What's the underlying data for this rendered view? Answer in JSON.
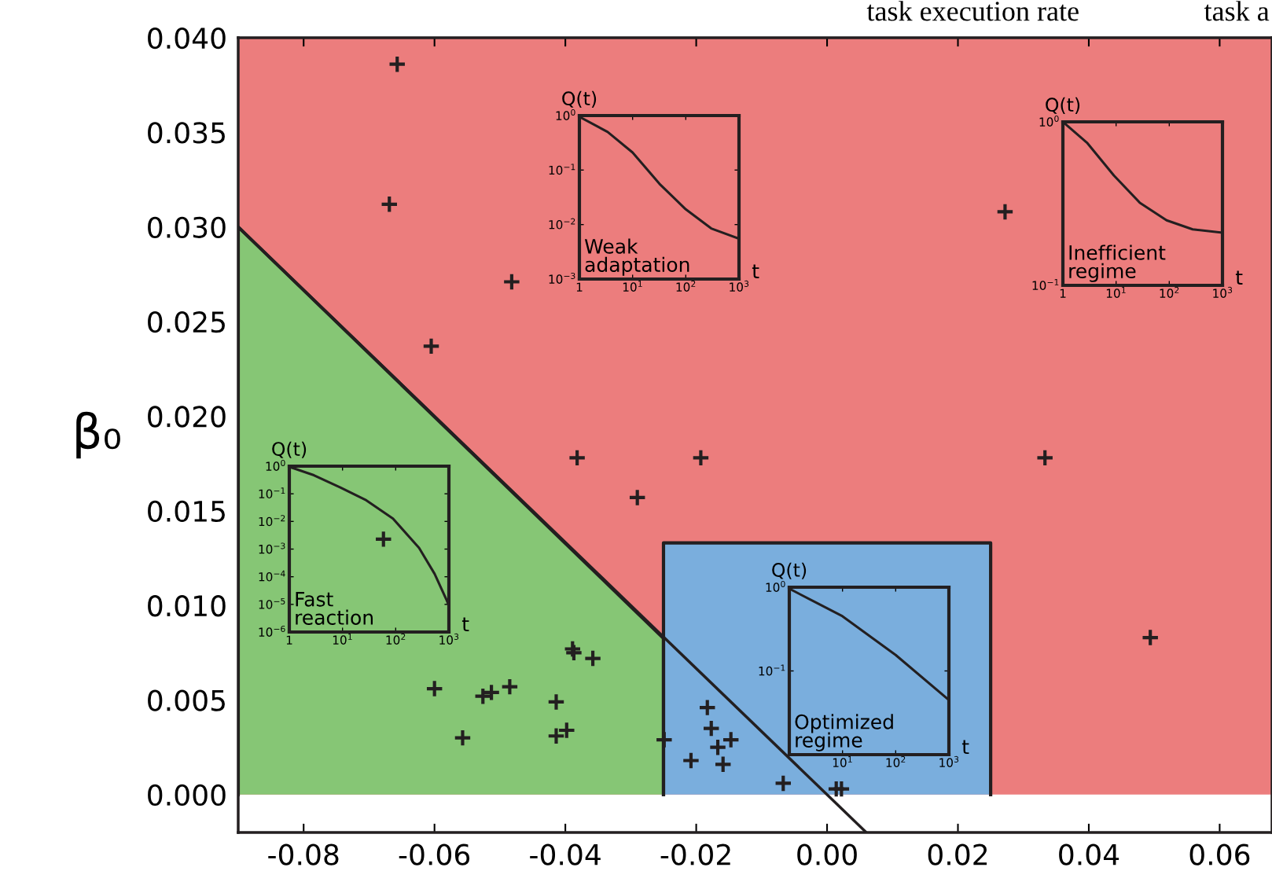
{
  "chart_data": [
    {
      "type": "scatter",
      "ylabel": "β₀",
      "annotations": [
        "task execution rate",
        "task a"
      ],
      "xlim": [
        -0.09,
        0.068
      ],
      "ylim": [
        -0.002,
        0.04
      ],
      "xticks": [
        {
          "value": -0.08,
          "label": "-0.08"
        },
        {
          "value": -0.06,
          "label": "-0.06"
        },
        {
          "value": -0.04,
          "label": "-0.04"
        },
        {
          "value": -0.02,
          "label": "-0.02"
        },
        {
          "value": 0.0,
          "label": "0.00"
        },
        {
          "value": 0.02,
          "label": "0.02"
        },
        {
          "value": 0.04,
          "label": "0.04"
        },
        {
          "value": 0.06,
          "label": "0.06"
        }
      ],
      "yticks": [
        {
          "value": 0.0,
          "label": "0.000"
        },
        {
          "value": 0.005,
          "label": "0.005"
        },
        {
          "value": 0.01,
          "label": "0.010"
        },
        {
          "value": 0.015,
          "label": "0.015"
        },
        {
          "value": 0.02,
          "label": "0.020"
        },
        {
          "value": 0.025,
          "label": "0.025"
        },
        {
          "value": 0.03,
          "label": "0.030"
        },
        {
          "value": 0.035,
          "label": "0.035"
        },
        {
          "value": 0.04,
          "label": "0.040"
        }
      ],
      "bands": [
        {
          "axis": "y",
          "from": 0.0,
          "to": 0.04,
          "color": "#ec7d7d"
        }
      ],
      "series": [
        {
          "type": "area",
          "color": "#86c675",
          "x": [
            -0.09,
            -0.025
          ],
          "values": [
            0.03,
            0.00826
          ]
        },
        {
          "type": "area",
          "color": "#7aaedd",
          "x": [
            -0.025,
            0.025
          ],
          "values": [
            0.0133,
            0.0133
          ]
        },
        {
          "type": "line",
          "color": "#231f20",
          "x": [
            -0.09,
            0.006
          ],
          "values": [
            0.03,
            -0.002
          ]
        },
        {
          "type": "scatter",
          "color": "#231f20",
          "marker": "cross",
          "x": [
            -0.0657,
            -0.0669,
            -0.0482,
            -0.0605,
            -0.0382,
            -0.0193,
            -0.029,
            0.0272,
            0.0333,
            0.0494,
            -0.0678,
            -0.0389,
            -0.0387,
            -0.0358,
            -0.06,
            -0.0526,
            -0.0513,
            -0.0485,
            -0.0414,
            -0.0557,
            -0.0414,
            -0.0398,
            -0.0249,
            -0.0183,
            -0.0177,
            -0.0167,
            -0.0147,
            -0.0208,
            -0.0159,
            -0.0067,
            0.0014,
            0.0022
          ],
          "values": [
            0.0386,
            0.0312,
            0.0271,
            0.0237,
            0.0178,
            0.0178,
            0.0157,
            0.0308,
            0.0178,
            0.0083,
            0.0135,
            0.0077,
            0.0075,
            0.0072,
            0.0056,
            0.0052,
            0.0054,
            0.0057,
            0.0049,
            0.003,
            0.0031,
            0.0034,
            0.0029,
            0.0046,
            0.0035,
            0.0025,
            0.0029,
            0.0018,
            0.0016,
            0.0006,
            0.0003,
            0.0003
          ]
        }
      ]
    },
    {
      "type": "line",
      "xlabel": "t",
      "ylabel": "Q(t)",
      "annotations": [
        "Weak adaptation"
      ],
      "log": "xy",
      "xlim": [
        1,
        1000
      ],
      "ylim": [
        0.001,
        1
      ],
      "xticks": [
        {
          "value": 1,
          "label": "1"
        },
        {
          "value": 10,
          "label": "10$^{1}$"
        },
        {
          "value": 100,
          "label": "10$^{2}$"
        },
        {
          "value": 1000,
          "label": "10$^{3}$"
        }
      ],
      "yticks": [
        {
          "value": 0.001,
          "label": "10$^{−3}$"
        },
        {
          "value": 0.01,
          "label": "10$^{−2}$"
        },
        {
          "value": 0.1,
          "label": "10$^{−1}$"
        },
        {
          "value": 1,
          "label": "10$^{0}$"
        }
      ],
      "series": [
        {
          "color": "#231f20",
          "x": [
            1,
            3.4,
            10,
            32,
            100,
            300,
            1000
          ],
          "values": [
            0.95,
            0.5,
            0.21,
            0.056,
            0.019,
            0.0085,
            0.0055
          ]
        }
      ]
    },
    {
      "type": "line",
      "xlabel": "t",
      "ylabel": "Q(t)",
      "annotations": [
        "Inefficient regime"
      ],
      "log": "xy",
      "xlim": [
        1,
        1000
      ],
      "ylim": [
        0.1,
        1
      ],
      "xticks": [
        {
          "value": 1,
          "label": "1"
        },
        {
          "value": 10,
          "label": "10$^{1}$"
        },
        {
          "value": 100,
          "label": "10$^{2}$"
        },
        {
          "value": 1000,
          "label": "10$^{3}$"
        }
      ],
      "yticks": [
        {
          "value": 0.1,
          "label": "10$^{−1}$"
        },
        {
          "value": 1,
          "label": "10$^{0}$"
        }
      ],
      "series": [
        {
          "color": "#231f20",
          "x": [
            1,
            2.9,
            9.1,
            28,
            89,
            275,
            1000
          ],
          "values": [
            1,
            0.74,
            0.47,
            0.32,
            0.25,
            0.22,
            0.21
          ]
        }
      ]
    },
    {
      "type": "line",
      "xlabel": "t",
      "ylabel": "Q(t)",
      "annotations": [
        "Fast reaction"
      ],
      "log": "xy",
      "xlim": [
        1,
        1000
      ],
      "ylim": [
        1e-06,
        1
      ],
      "xticks": [
        {
          "value": 1,
          "label": "1"
        },
        {
          "value": 10,
          "label": "10$^{1}$"
        },
        {
          "value": 100,
          "label": "10$^{2}$"
        },
        {
          "value": 1000,
          "label": "10$^{3}$"
        }
      ],
      "yticks": [
        {
          "value": 1e-06,
          "label": "10$^{−6}$"
        },
        {
          "value": 1e-05,
          "label": "10$^{−5}$"
        },
        {
          "value": 0.0001,
          "label": "10$^{−4}$"
        },
        {
          "value": 0.001,
          "label": "10$^{−3}$"
        },
        {
          "value": 0.01,
          "label": "10$^{−2}$"
        },
        {
          "value": 0.1,
          "label": "10$^{−1}$"
        },
        {
          "value": 1,
          "label": "10$^{0}$"
        }
      ],
      "series": [
        {
          "color": "#231f20",
          "x": [
            1,
            2.9,
            9.1,
            28,
            89,
            275,
            540,
            910,
            1000
          ],
          "values": [
            0.95,
            0.47,
            0.17,
            0.058,
            0.0126,
            0.0011,
            0.000126,
            1.4e-05,
            9e-06
          ]
        }
      ]
    },
    {
      "type": "line",
      "xlabel": "t",
      "ylabel": "Q(t)",
      "annotations": [
        "Optimized regime"
      ],
      "log": "xy",
      "xlim": [
        1,
        1000
      ],
      "ylim": [
        0.01,
        1
      ],
      "xticks": [
        {
          "value": 1,
          "label": null
        },
        {
          "value": 10,
          "label": "10$^{1}$"
        },
        {
          "value": 100,
          "label": "10$^{2}$"
        },
        {
          "value": 1000,
          "label": "10$^{3}$"
        }
      ],
      "yticks": [
        {
          "value": 0.01,
          "label": null
        },
        {
          "value": 0.1,
          "label": "10$^{−1}$"
        },
        {
          "value": 1,
          "label": "10$^{0}$"
        }
      ],
      "series": [
        {
          "color": "#231f20",
          "x": [
            1,
            10,
            100,
            1000
          ],
          "values": [
            0.96,
            0.45,
            0.155,
            0.045
          ]
        }
      ]
    }
  ]
}
